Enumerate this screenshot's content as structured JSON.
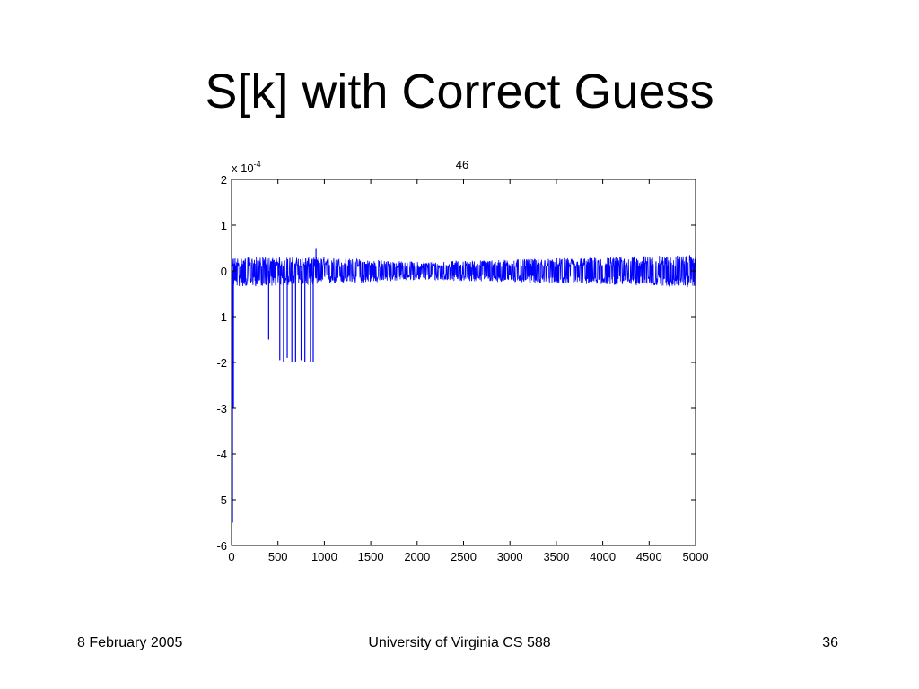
{
  "slide": {
    "title": "S[k] with Correct Guess",
    "footer": {
      "date": "8 February 2005",
      "course": "University of Virginia CS 588",
      "page": "36"
    }
  },
  "chart_data": {
    "type": "line",
    "title": "46",
    "xlabel": "",
    "ylabel": "",
    "y_exponent_label": "x 10",
    "y_exponent_power": "-4",
    "xlim": [
      0,
      5000
    ],
    "ylim": [
      -6,
      2
    ],
    "x_ticks": [
      0,
      500,
      1000,
      1500,
      2000,
      2500,
      3000,
      3500,
      4000,
      4500,
      5000
    ],
    "y_ticks": [
      2,
      1,
      0,
      -1,
      -2,
      -3,
      -4,
      -5,
      -6
    ],
    "grid": false,
    "legend": "none",
    "series_color": "#0000ff",
    "series": [
      {
        "noise_band": [
          {
            "x": 0,
            "low": -0.35,
            "high": 0.3
          },
          {
            "x": 1000,
            "low": -0.3,
            "high": 0.3
          },
          {
            "x": 2000,
            "low": -0.2,
            "high": 0.2
          },
          {
            "x": 3000,
            "low": -0.25,
            "high": 0.25
          },
          {
            "x": 4000,
            "low": -0.3,
            "high": 0.3
          },
          {
            "x": 5000,
            "low": -0.35,
            "high": 0.35
          }
        ],
        "spikes": [
          {
            "x": 10,
            "y": -5.5
          },
          {
            "x": 20,
            "y": -3.0
          },
          {
            "x": 400,
            "y": -1.5
          },
          {
            "x": 520,
            "y": -1.95
          },
          {
            "x": 560,
            "y": -2.0
          },
          {
            "x": 600,
            "y": -1.9
          },
          {
            "x": 650,
            "y": -2.0
          },
          {
            "x": 690,
            "y": -2.0
          },
          {
            "x": 750,
            "y": -1.95
          },
          {
            "x": 790,
            "y": -2.0
          },
          {
            "x": 850,
            "y": -2.0
          },
          {
            "x": 880,
            "y": -2.0
          },
          {
            "x": 910,
            "y": 0.5
          }
        ]
      }
    ]
  }
}
